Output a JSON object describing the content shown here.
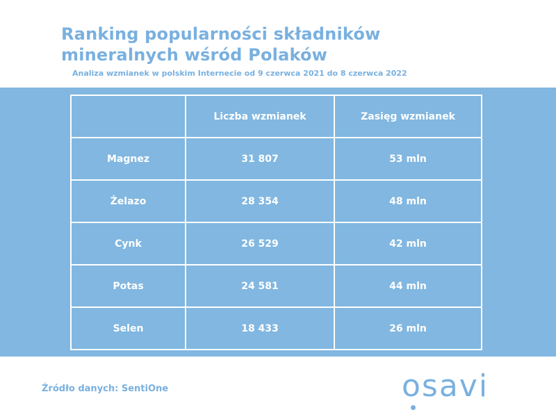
{
  "header": {
    "title_line1": "Ranking popularności składników",
    "title_line2": "mineralnych wśród Polaków",
    "subtitle": "Analiza wzmianek w polskim Internecie od 9 czerwca 2021 do 8 czerwca 2022"
  },
  "table": {
    "columns": [
      "",
      "Liczba wzmianek",
      "Zasięg wzmianek"
    ],
    "rows": [
      [
        "Magnez",
        "31 807",
        "53 mln"
      ],
      [
        "Żelazo",
        "28 354",
        "48 mln"
      ],
      [
        "Cynk",
        "26 529",
        "42 mln"
      ],
      [
        "Potas",
        "24 581",
        "44 mln"
      ],
      [
        "Selen",
        "18 433",
        "26 mln"
      ]
    ]
  },
  "footer": {
    "source": "Źródło danych: SentiOne",
    "logo_text": "osavi"
  },
  "colors": {
    "accent": "#79b0df",
    "band": "#81b7e0",
    "text_on_band": "#ffffff"
  }
}
